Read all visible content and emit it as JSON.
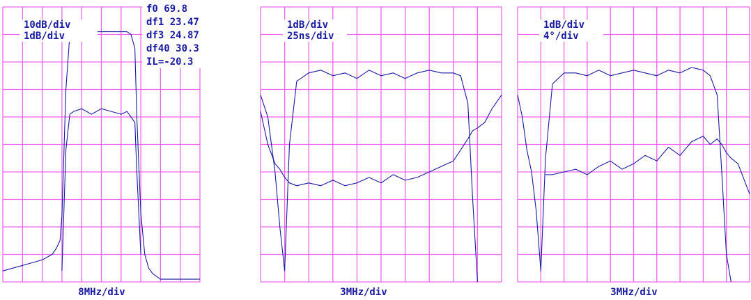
{
  "colors": {
    "grid": "#ee66ee",
    "trace": "#1a1aa0",
    "background": "#ffffff"
  },
  "chart_data": [
    {
      "type": "line",
      "scale_labels": [
        "10dB/div",
        "1dB/div"
      ],
      "readouts": [
        "f0 69.8",
        "df1 23.47",
        "df3 24.87",
        "df40 30.3",
        "IL=-20.3"
      ],
      "xlabel": "8MHz/div",
      "grid": true,
      "divisions": {
        "x": 10,
        "y": 10
      },
      "x": [
        0,
        0.5,
        1,
        1.5,
        2,
        2.5,
        2.7,
        2.9,
        3.0,
        3.2,
        3.4,
        3.6,
        4,
        4.5,
        5,
        5.5,
        6,
        6.3,
        6.5,
        6.7,
        6.8,
        7.0,
        7.2,
        7.4,
        7.6,
        7.8,
        8,
        9,
        10
      ],
      "series": [
        {
          "values": [
            0.4,
            0.5,
            0.6,
            0.7,
            0.8,
            1.0,
            1.2,
            1.5,
            2.4,
            7.0,
            9.0,
            9.1,
            9.1,
            9.1,
            9.1,
            9.1,
            9.1,
            9.1,
            9.0,
            8.5,
            6.0,
            2.5,
            1.0,
            0.5,
            0.3,
            0.2,
            0.1,
            0.1,
            0.1
          ]
        },
        {
          "values": [
            null,
            null,
            null,
            null,
            null,
            null,
            null,
            null,
            0.4,
            4.8,
            6.1,
            6.2,
            6.3,
            6.1,
            6.3,
            6.2,
            6.1,
            6.2,
            6.0,
            5.8,
            4.0,
            1.0,
            null,
            null,
            null,
            null,
            null,
            null,
            null
          ]
        }
      ]
    },
    {
      "type": "line",
      "scale_labels": [
        "1dB/div",
        "25ns/div"
      ],
      "xlabel": "3MHz/div",
      "grid": true,
      "divisions": {
        "x": 10,
        "y": 10
      },
      "x": [
        0,
        0.3,
        0.6,
        0.8,
        1,
        1.2,
        1.5,
        2,
        2.5,
        3,
        3.5,
        4,
        4.5,
        5,
        5.5,
        6,
        6.5,
        7,
        7.5,
        8,
        8.3,
        8.6,
        8.8,
        9,
        9.3,
        9.6,
        10
      ],
      "series": [
        {
          "values": [
            6.8,
            6.0,
            4.0,
            2.0,
            0.4,
            5.0,
            7.3,
            7.6,
            7.7,
            7.5,
            7.6,
            7.4,
            7.7,
            7.5,
            7.6,
            7.4,
            7.6,
            7.7,
            7.6,
            7.6,
            7.5,
            6.5,
            3.0,
            0.0,
            null,
            null,
            null
          ]
        },
        {
          "values": [
            6.2,
            5.0,
            4.3,
            4.1,
            3.8,
            3.6,
            3.5,
            3.6,
            3.5,
            3.7,
            3.5,
            3.6,
            3.8,
            3.6,
            3.9,
            3.7,
            3.8,
            4.0,
            4.2,
            4.4,
            4.8,
            5.2,
            5.5,
            5.6,
            5.8,
            6.3,
            6.8
          ]
        }
      ]
    },
    {
      "type": "line",
      "scale_labels": [
        "1dB/div",
        "4°/div"
      ],
      "xlabel": "3MHz/div",
      "grid": true,
      "divisions": {
        "x": 10,
        "y": 10
      },
      "x": [
        0,
        0.2,
        0.4,
        0.6,
        0.8,
        1,
        1.2,
        1.5,
        2,
        2.5,
        3,
        3.5,
        4,
        4.5,
        5,
        5.5,
        6,
        6.5,
        7,
        7.5,
        8,
        8.3,
        8.6,
        8.8,
        9,
        9.2,
        9.5,
        10
      ],
      "series": [
        {
          "values": [
            6.8,
            6.0,
            4.8,
            4.0,
            2.6,
            0.4,
            4.5,
            7.2,
            7.6,
            7.6,
            7.5,
            7.7,
            7.5,
            7.6,
            7.7,
            7.6,
            7.5,
            7.7,
            7.6,
            7.8,
            7.7,
            7.5,
            6.8,
            4.0,
            1.0,
            0.0,
            null,
            null
          ]
        },
        {
          "values": [
            null,
            null,
            null,
            null,
            null,
            null,
            3.9,
            3.9,
            4.0,
            4.1,
            3.9,
            4.2,
            4.4,
            4.1,
            4.3,
            4.6,
            4.4,
            4.9,
            4.6,
            5.1,
            5.3,
            5.0,
            5.2,
            5.0,
            4.7,
            4.5,
            4.3,
            3.2
          ]
        }
      ]
    }
  ]
}
